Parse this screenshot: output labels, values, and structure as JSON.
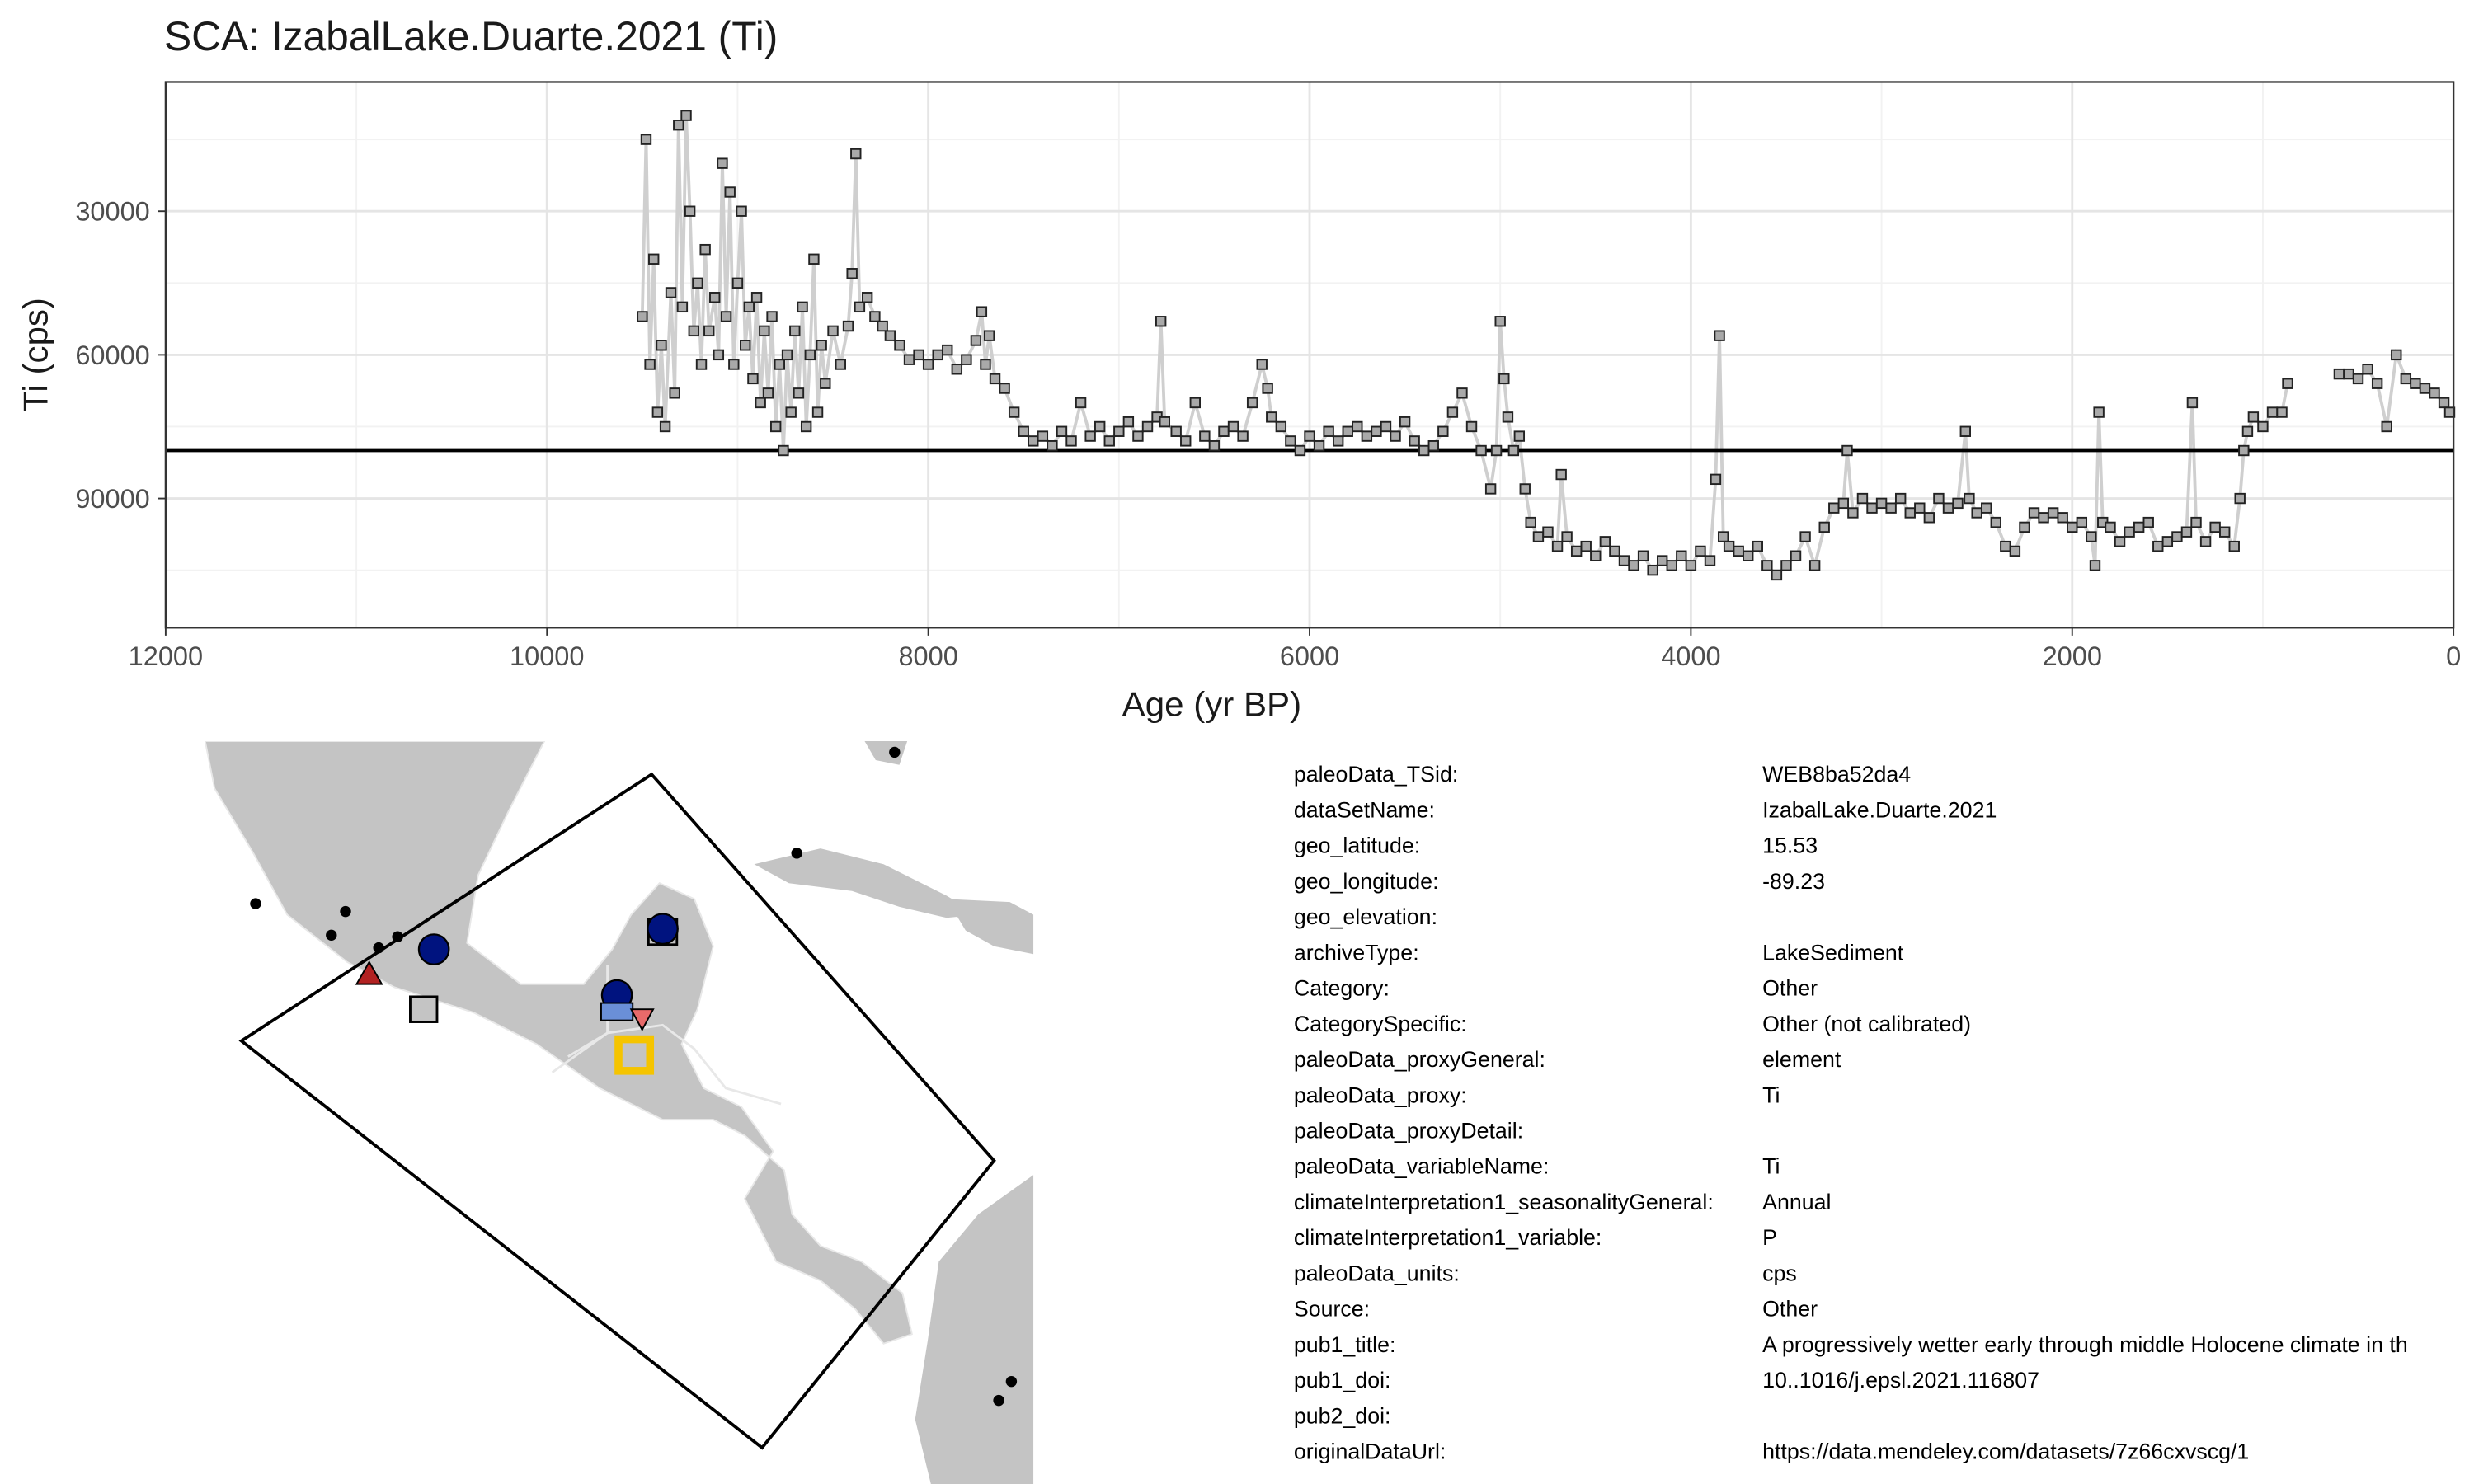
{
  "chart_data": {
    "type": "line",
    "title": "SCA: IzabalLake.Duarte.2021 (Ti)",
    "x_label": "Age (yr BP)",
    "y_label": "Ti (cps)",
    "xlim": [
      12000,
      0
    ],
    "ylim": [
      117000,
      3000
    ],
    "xticks": [
      12000,
      10000,
      8000,
      6000,
      4000,
      2000,
      0
    ],
    "xminorticks": [
      11000,
      9000,
      7000,
      5000,
      3000,
      1000
    ],
    "yticks": [
      30000,
      60000,
      90000
    ],
    "yminorticks": [
      15000,
      45000,
      75000,
      105000
    ],
    "grid": true,
    "hline": 80000,
    "color": "#a9a9a9",
    "line_color": "#cfcfcf",
    "x": [
      9500,
      9480,
      9460,
      9440,
      9420,
      9400,
      9380,
      9350,
      9330,
      9310,
      9290,
      9270,
      9250,
      9230,
      9210,
      9190,
      9170,
      9150,
      9120,
      9100,
      9080,
      9060,
      9040,
      9020,
      9000,
      8980,
      8960,
      8940,
      8920,
      8900,
      8880,
      8860,
      8840,
      8820,
      8800,
      8780,
      8760,
      8740,
      8720,
      8700,
      8680,
      8660,
      8640,
      8620,
      8600,
      8580,
      8560,
      8540,
      8500,
      8460,
      8420,
      8400,
      8380,
      8360,
      8320,
      8280,
      8240,
      8200,
      8150,
      8100,
      8050,
      8000,
      7950,
      7900,
      7850,
      7800,
      7750,
      7720,
      7700,
      7680,
      7650,
      7600,
      7550,
      7500,
      7450,
      7400,
      7350,
      7300,
      7250,
      7200,
      7150,
      7100,
      7050,
      7000,
      6950,
      6900,
      6850,
      6800,
      6780,
      6760,
      6700,
      6650,
      6600,
      6550,
      6500,
      6450,
      6400,
      6350,
      6300,
      6250,
      6220,
      6200,
      6150,
      6100,
      6050,
      6000,
      5950,
      5900,
      5850,
      5800,
      5750,
      5700,
      5650,
      5600,
      5550,
      5500,
      5450,
      5400,
      5350,
      5300,
      5250,
      5200,
      5150,
      5100,
      5050,
      5020,
      5000,
      4980,
      4960,
      4930,
      4900,
      4870,
      4840,
      4800,
      4750,
      4700,
      4680,
      4650,
      4600,
      4550,
      4500,
      4450,
      4400,
      4350,
      4300,
      4250,
      4200,
      4150,
      4100,
      4050,
      4000,
      3950,
      3900,
      3870,
      3850,
      3830,
      3800,
      3750,
      3700,
      3650,
      3600,
      3550,
      3500,
      3450,
      3400,
      3350,
      3300,
      3250,
      3200,
      3180,
      3150,
      3100,
      3050,
      3000,
      2950,
      2900,
      2850,
      2800,
      2750,
      2700,
      2650,
      2600,
      2560,
      2540,
      2500,
      2450,
      2400,
      2350,
      2300,
      2250,
      2200,
      2150,
      2100,
      2050,
      2000,
      1950,
      1900,
      1880,
      1860,
      1840,
      1800,
      1750,
      1700,
      1650,
      1600,
      1550,
      1500,
      1450,
      1400,
      1370,
      1350,
      1300,
      1250,
      1200,
      1150,
      1120,
      1100,
      1080,
      1050,
      1000,
      950,
      900,
      870,
      750,
      600,
      550,
      500,
      450,
      400,
      350,
      300,
      250,
      200,
      150,
      100,
      50,
      20
    ],
    "values": [
      52000,
      15000,
      62000,
      40000,
      72000,
      58000,
      75000,
      47000,
      68000,
      12000,
      50000,
      10000,
      30000,
      55000,
      45000,
      62000,
      38000,
      55000,
      48000,
      60000,
      20000,
      52000,
      26000,
      62000,
      45000,
      30000,
      58000,
      50000,
      65000,
      48000,
      70000,
      55000,
      68000,
      52000,
      75000,
      62000,
      80000,
      60000,
      72000,
      55000,
      68000,
      50000,
      75000,
      60000,
      40000,
      72000,
      58000,
      66000,
      55000,
      62000,
      54000,
      43000,
      18000,
      50000,
      48000,
      52000,
      54000,
      56000,
      58000,
      61000,
      60000,
      62000,
      60000,
      59000,
      63000,
      61000,
      57000,
      51000,
      62000,
      56000,
      65000,
      67000,
      72000,
      76000,
      78000,
      77000,
      79000,
      76000,
      78000,
      70000,
      77000,
      75000,
      78000,
      76000,
      74000,
      77000,
      75000,
      73000,
      53000,
      74000,
      76000,
      78000,
      70000,
      77000,
      79000,
      76000,
      75000,
      77000,
      70000,
      62000,
      67000,
      73000,
      75000,
      78000,
      80000,
      77000,
      79000,
      76000,
      78000,
      76000,
      75000,
      77000,
      76000,
      75000,
      77000,
      74000,
      78000,
      80000,
      79000,
      76000,
      72000,
      68000,
      75000,
      80000,
      88000,
      80000,
      53000,
      65000,
      73000,
      80000,
      77000,
      88000,
      95000,
      98000,
      97000,
      100000,
      85000,
      98000,
      101000,
      100000,
      102000,
      99000,
      101000,
      103000,
      104000,
      102000,
      105000,
      103000,
      104000,
      102000,
      104000,
      101000,
      103000,
      86000,
      56000,
      98000,
      100000,
      101000,
      102000,
      100000,
      104000,
      106000,
      104000,
      102000,
      98000,
      104000,
      96000,
      92000,
      91000,
      80000,
      93000,
      90000,
      92000,
      91000,
      92000,
      90000,
      93000,
      92000,
      94000,
      90000,
      92000,
      91000,
      76000,
      90000,
      93000,
      92000,
      95000,
      100000,
      101000,
      96000,
      93000,
      94000,
      93000,
      94000,
      96000,
      95000,
      98000,
      104000,
      72000,
      95000,
      96000,
      99000,
      97000,
      96000,
      95000,
      100000,
      99000,
      98000,
      97000,
      70000,
      95000,
      99000,
      96000,
      97000,
      100000,
      90000,
      80000,
      76000,
      73000,
      75000,
      72000,
      72000,
      66000,
      null,
      64000,
      64000,
      65000,
      63000,
      66000,
      75000,
      60000,
      65000,
      66000,
      67000,
      68000,
      70000,
      72000
    ]
  },
  "metadata": {
    "rows": [
      [
        "paleoData_TSid:",
        "WEB8ba52da4"
      ],
      [
        "dataSetName:",
        "IzabalLake.Duarte.2021"
      ],
      [
        "geo_latitude:",
        "15.53"
      ],
      [
        "geo_longitude:",
        "-89.23"
      ],
      [
        "geo_elevation:"
      ],
      [
        "archiveType:",
        "LakeSediment"
      ],
      [
        "Category:",
        "Other"
      ],
      [
        "CategorySpecific:",
        "Other (not calibrated)"
      ],
      [
        "paleoData_proxyGeneral:",
        "element"
      ],
      [
        "paleoData_proxy:",
        "Ti"
      ],
      [
        "paleoData_proxyDetail:"
      ],
      [
        "paleoData_variableName:",
        "Ti"
      ],
      [
        "climateInterpretation1_seasonalityGeneral:",
        "Annual"
      ],
      [
        "climateInterpretation1_variable:",
        "P"
      ],
      [
        "paleoData_units:",
        "cps"
      ],
      [
        "Source:",
        "Other"
      ],
      [
        "pub1_title:",
        "A progressively wetter early through middle Holocene climate in th"
      ],
      [
        "pub1_doi:",
        "10..1016/j.epsl.2021.116807"
      ],
      [
        "pub2_doi:"
      ],
      [
        "originalDataUrl:",
        "https://data.mendeley.com/datasets/7z66cxvscg/1"
      ]
    ]
  }
}
